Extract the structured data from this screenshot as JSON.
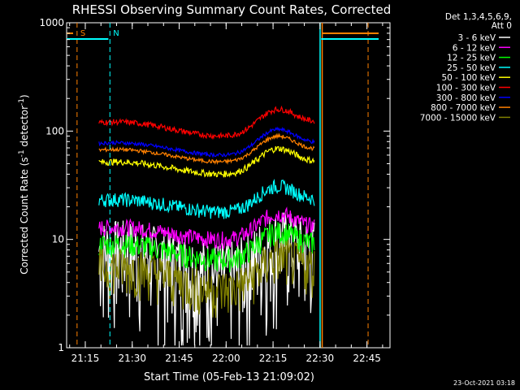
{
  "chart_data": {
    "type": "line",
    "title": "RHESSI Observing Summary Count Rates, Corrected",
    "xlabel": "Start Time (05-Feb-13 21:09:02)",
    "ylabel": "Corrected Count Rate (s⁻¹ detector⁻¹)",
    "ylabel_main": "Corrected Count Rate (s",
    "ylabel_sup1": "-1",
    "ylabel_mid": " detector",
    "ylabel_sup2": "-1",
    "ylabel_end": ")",
    "yscale": "log",
    "ylim": [
      1,
      1000
    ],
    "xlim": [
      0,
      1600
    ],
    "x_unit": "seconds since start",
    "yticks": [
      {
        "value": 1,
        "label": "1"
      },
      {
        "value": 10,
        "label": "10"
      },
      {
        "value": 100,
        "label": "100"
      },
      {
        "value": 1000,
        "label": "1000"
      }
    ],
    "xticks": [
      {
        "value": 358,
        "label": "21:15"
      },
      {
        "value": 1258,
        "label": "21:30"
      },
      {
        "value": 2158,
        "label": "21:45"
      },
      {
        "value": 3058,
        "label": "22:00"
      },
      {
        "value": 3958,
        "label": "22:15"
      },
      {
        "value": 4858,
        "label": "22:30"
      },
      {
        "value": 5758,
        "label": "22:45"
      }
    ],
    "xlim_seconds": [
      0,
      6200
    ],
    "legend_header": [
      "Det 1,3,4,5,6,9,",
      "Att 0"
    ],
    "legend_position": "right",
    "series": [
      {
        "name": "3 - 6 keV",
        "color": "#ffffff",
        "base": 5.0,
        "amp": 1.6,
        "noise": 0.9
      },
      {
        "name": "6 - 12 keV",
        "color": "#ff00ff",
        "base": 10.0,
        "amp": 1.3,
        "noise": 0.18
      },
      {
        "name": "12 - 25 keV",
        "color": "#00ff00",
        "base": 6.5,
        "amp": 1.4,
        "noise": 0.25
      },
      {
        "name": "25 - 50 keV",
        "color": "#00ffff",
        "base": 18.0,
        "amp": 1.3,
        "noise": 0.15
      },
      {
        "name": "50 - 100 keV",
        "color": "#ffff00",
        "base": 40.0,
        "amp": 1.3,
        "noise": 0.07
      },
      {
        "name": "100 - 300 keV",
        "color": "#ff0000",
        "base": 90.0,
        "amp": 1.35,
        "noise": 0.06
      },
      {
        "name": "300 - 800 keV",
        "color": "#0000ff",
        "base": 60.0,
        "amp": 1.3,
        "noise": 0.04
      },
      {
        "name": "800 - 7000 keV",
        "color": "#ff8000",
        "base": 52.0,
        "amp": 1.3,
        "noise": 0.04
      },
      {
        "name": "7000 - 15000 keV",
        "color": "#808000",
        "base": 3.5,
        "amp": 1.6,
        "noise": 0.5
      }
    ],
    "markers": [
      {
        "label": "S",
        "color": "#ff8000",
        "x_seconds": 200
      },
      {
        "label": "N",
        "color": "#00ffff",
        "x_seconds": 830
      }
    ],
    "timestamp": "23-Oct-2021 03:18"
  }
}
